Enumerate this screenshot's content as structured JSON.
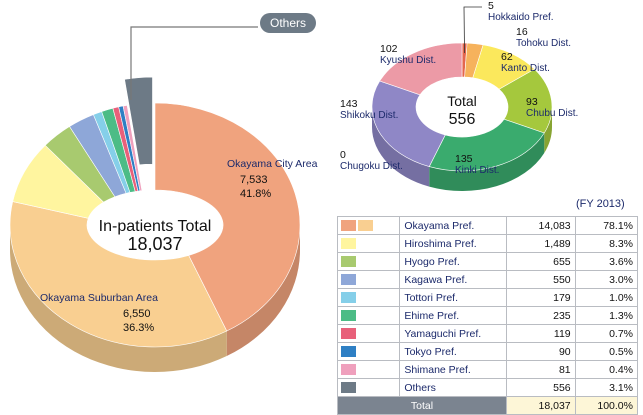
{
  "chart_data": [
    {
      "type": "pie",
      "center_label": "In-patients Total",
      "center_value": "18,037",
      "callout": "Others",
      "slices": [
        {
          "name": "Okayama City Area",
          "value": 7533,
          "pct": "41.8%",
          "value_label": "7,533",
          "color": "#f0a37e"
        },
        {
          "name": "Okayama Suburban Area",
          "value": 6550,
          "pct": "36.3%",
          "value_label": "6,550",
          "color": "#f9cf91"
        },
        {
          "name": "Hiroshima Pref.",
          "value": 1489,
          "color": "#fff59f"
        },
        {
          "name": "Hyogo Pref.",
          "value": 655,
          "color": "#a8ca6f"
        },
        {
          "name": "Kagawa Pref.",
          "value": 550,
          "color": "#8ea7d8"
        },
        {
          "name": "Tottori Pref.",
          "value": 179,
          "color": "#85cfe9"
        },
        {
          "name": "Ehime Pref.",
          "value": 235,
          "color": "#4cbc86"
        },
        {
          "name": "Yamaguchi Pref.",
          "value": 119,
          "color": "#e8607a"
        },
        {
          "name": "Tokyo Pref.",
          "value": 90,
          "color": "#2e7fc4"
        },
        {
          "name": "Shimane Pref.",
          "value": 81,
          "color": "#efa0bd"
        },
        {
          "name": "Others",
          "value": 556,
          "color": "#6d7a86"
        }
      ]
    },
    {
      "type": "pie",
      "center_label": "Total",
      "center_value": "556",
      "slices": [
        {
          "name": "Hokkaido Pref.",
          "value": 5,
          "color": "#e4664e"
        },
        {
          "name": "Tohoku Dist.",
          "value": 16,
          "color": "#f6b25c"
        },
        {
          "name": "Kanto Dist.",
          "value": 62,
          "color": "#fbe85c"
        },
        {
          "name": "Chubu Dist.",
          "value": 93,
          "color": "#a5c83d"
        },
        {
          "name": "Kinki Dist.",
          "value": 135,
          "color": "#3aab6e"
        },
        {
          "name": "Chugoku Dist.",
          "value": 0,
          "color": "#4f8ac2"
        },
        {
          "name": "Shikoku Dist.",
          "value": 143,
          "color": "#8f87c6"
        },
        {
          "name": "Kyushu Dist.",
          "value": 102,
          "color": "#ec9aa6"
        }
      ]
    },
    {
      "type": "table",
      "note": "(FY 2013)",
      "rows": [
        {
          "name": "Okayama Pref.",
          "value": "14,083",
          "pct": "78.1%",
          "colors": [
            "#f0a37e",
            "#f9cf91"
          ]
        },
        {
          "name": "Hiroshima Pref.",
          "value": "1,489",
          "pct": "8.3%",
          "colors": [
            "#fff59f"
          ]
        },
        {
          "name": "Hyogo Pref.",
          "value": "655",
          "pct": "3.6%",
          "colors": [
            "#a8ca6f"
          ]
        },
        {
          "name": "Kagawa Pref.",
          "value": "550",
          "pct": "3.0%",
          "colors": [
            "#8ea7d8"
          ]
        },
        {
          "name": "Tottori Pref.",
          "value": "179",
          "pct": "1.0%",
          "colors": [
            "#85cfe9"
          ]
        },
        {
          "name": "Ehime Pref.",
          "value": "235",
          "pct": "1.3%",
          "colors": [
            "#4cbc86"
          ]
        },
        {
          "name": "Yamaguchi Pref.",
          "value": "119",
          "pct": "0.7%",
          "colors": [
            "#e8607a"
          ]
        },
        {
          "name": "Tokyo Pref.",
          "value": "90",
          "pct": "0.5%",
          "colors": [
            "#2e7fc4"
          ]
        },
        {
          "name": "Shimane Pref.",
          "value": "81",
          "pct": "0.4%",
          "colors": [
            "#efa0bd"
          ]
        },
        {
          "name": "Others",
          "value": "556",
          "pct": "3.1%",
          "colors": [
            "#6d7a86"
          ]
        }
      ],
      "total": {
        "name": "Total",
        "value": "18,037",
        "pct": "100.0%"
      }
    }
  ]
}
